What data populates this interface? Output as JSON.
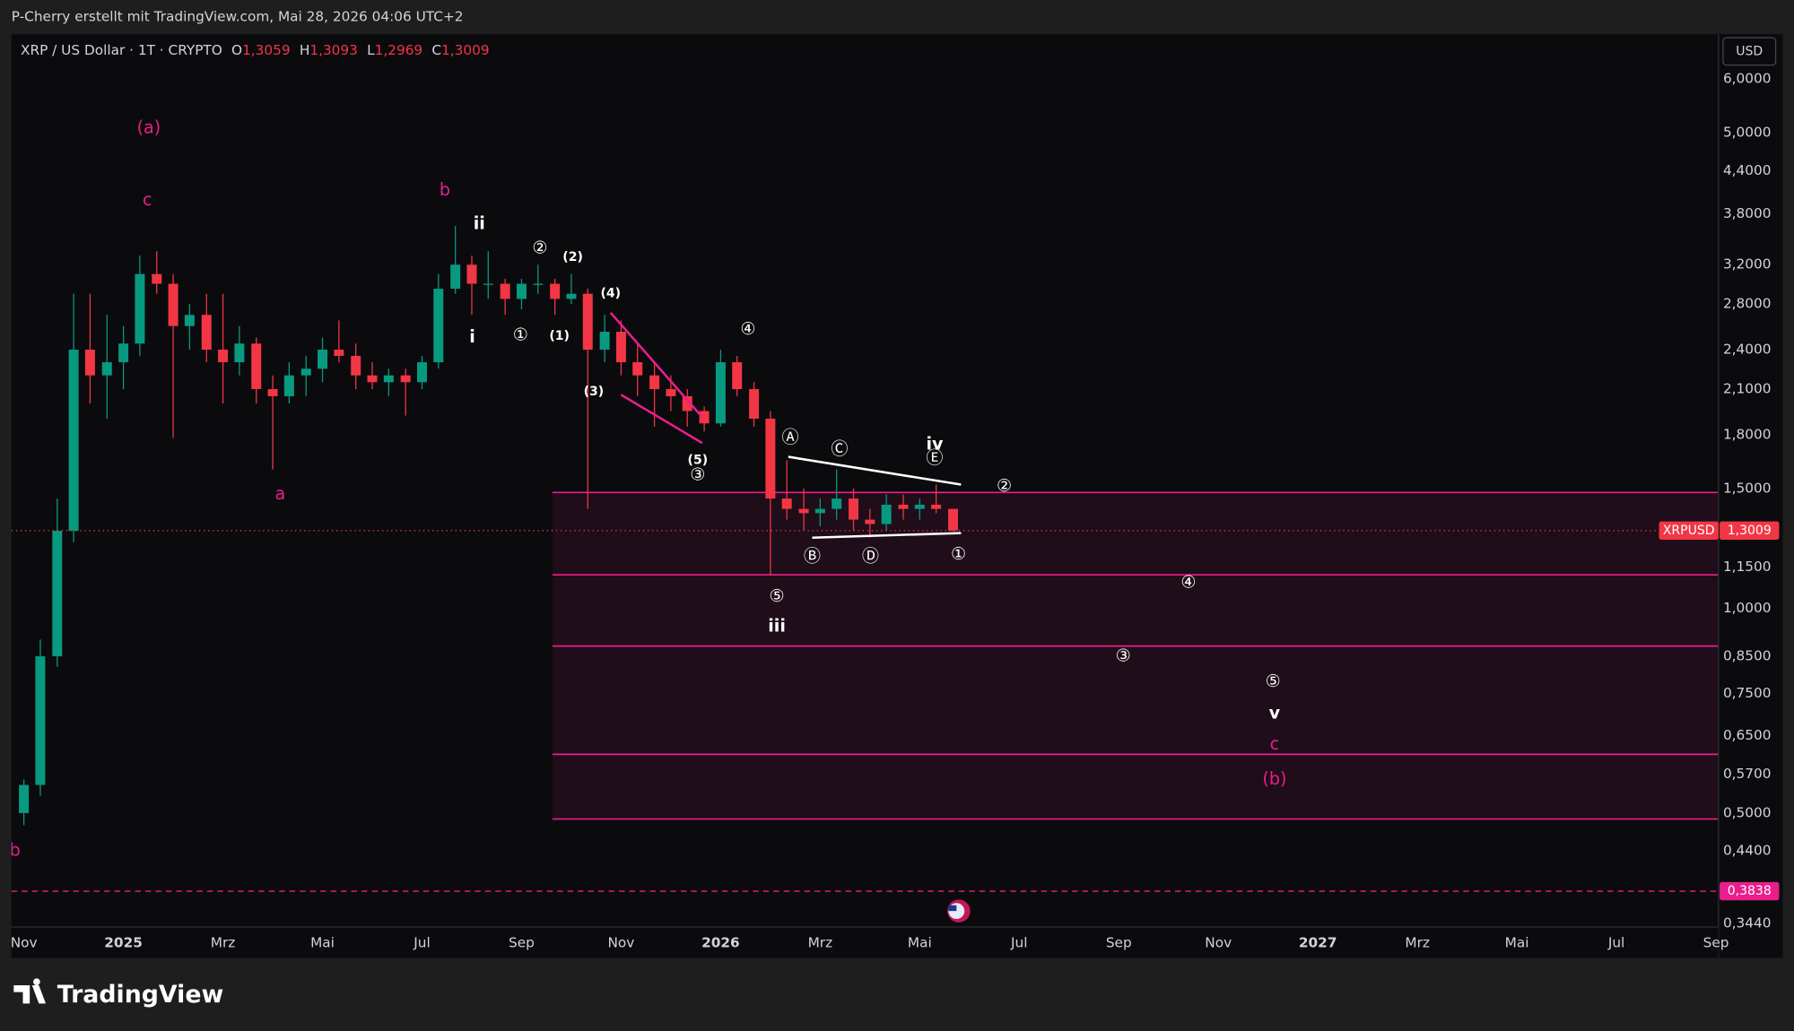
{
  "header": {
    "text": "P-Cherry erstellt mit TradingView.com, Mai 28, 2026 04:06 UTC+2"
  },
  "footer": {
    "brand": "TradingView"
  },
  "chart_data": {
    "type": "candlestick",
    "title": "XRP / US Dollar · 1T · CRYPTO",
    "ohlc_legend": [
      {
        "name": "O",
        "value": 1.3059,
        "label": "1,3059"
      },
      {
        "name": "H",
        "value": 1.3093,
        "label": "1,3093"
      },
      {
        "name": "L",
        "value": 1.2969,
        "label": "1,2969"
      },
      {
        "name": "C",
        "value": 1.3009,
        "label": "1,3009"
      }
    ],
    "currency": "USD",
    "up_color": "#089981",
    "down_color": "#f23645",
    "log_scale": true,
    "grid": false,
    "xlim": [
      -0.25,
      34.05
    ],
    "ylim": [
      0.34,
      6.98
    ],
    "xticks": [
      {
        "value": 0,
        "label": "Nov"
      },
      {
        "value": 2,
        "label": "2025"
      },
      {
        "value": 4,
        "label": "Mrz"
      },
      {
        "value": 6,
        "label": "Mai"
      },
      {
        "value": 8,
        "label": "Jul"
      },
      {
        "value": 10,
        "label": "Sep"
      },
      {
        "value": 12,
        "label": "Nov"
      },
      {
        "value": 14,
        "label": "2026"
      },
      {
        "value": 16,
        "label": "Mrz"
      },
      {
        "value": 18,
        "label": "Mai"
      },
      {
        "value": 20,
        "label": "Jul"
      },
      {
        "value": 22,
        "label": "Sep"
      },
      {
        "value": 24,
        "label": "Nov"
      },
      {
        "value": 26,
        "label": "2027"
      },
      {
        "value": 28,
        "label": "Mrz"
      },
      {
        "value": 30,
        "label": "Mai"
      },
      {
        "value": 32,
        "label": "Jul"
      },
      {
        "value": 34,
        "label": "Sep"
      }
    ],
    "yticks": [
      {
        "value": 6,
        "label": "6,0000"
      },
      {
        "value": 5,
        "label": "5,0000"
      },
      {
        "value": 4.4,
        "label": "4,4000"
      },
      {
        "value": 3.8,
        "label": "3,8000"
      },
      {
        "value": 3.2,
        "label": "3,2000"
      },
      {
        "value": 2.8,
        "label": "2,8000"
      },
      {
        "value": 2.4,
        "label": "2,4000"
      },
      {
        "value": 2.1,
        "label": "2,1000"
      },
      {
        "value": 1.8,
        "label": "1,8000"
      },
      {
        "value": 1.5,
        "label": "1,5000"
      },
      {
        "value": 1.15,
        "label": "1,1500"
      },
      {
        "value": 1,
        "label": "1,0000"
      },
      {
        "value": 0.85,
        "label": "0,8500"
      },
      {
        "value": 0.75,
        "label": "0,7500"
      },
      {
        "value": 0.65,
        "label": "0,6500"
      },
      {
        "value": 0.57,
        "label": "0,5700"
      },
      {
        "value": 0.5,
        "label": "0,5000"
      },
      {
        "value": 0.44,
        "label": "0,4400"
      },
      {
        "value": 0.344,
        "label": "0,3440"
      }
    ],
    "x": [
      0,
      0.33,
      0.67,
      1,
      1.33,
      1.67,
      2,
      2.33,
      2.67,
      3,
      3.33,
      3.67,
      4,
      4.33,
      4.67,
      5,
      5.33,
      5.67,
      6,
      6.33,
      6.67,
      7,
      7.33,
      7.67,
      8,
      8.33,
      8.67,
      9,
      9.33,
      9.67,
      10,
      10.33,
      10.67,
      11,
      11.33,
      11.67,
      12,
      12.33,
      12.67,
      13,
      13.33,
      13.67,
      14,
      14.33,
      14.67,
      15,
      15.33,
      15.67,
      16,
      16.33,
      16.67,
      17,
      17.33,
      17.67,
      18,
      18.33,
      18.67
    ],
    "open": [
      0.5,
      0.55,
      0.85,
      1.3,
      2.4,
      2.2,
      2.3,
      2.45,
      3.1,
      3.0,
      2.6,
      2.7,
      2.4,
      2.3,
      2.45,
      2.1,
      2.05,
      2.2,
      2.25,
      2.4,
      2.35,
      2.2,
      2.15,
      2.2,
      2.15,
      2.3,
      2.95,
      3.2,
      3.0,
      3.0,
      2.85,
      3.0,
      3.0,
      2.85,
      2.9,
      2.4,
      2.55,
      2.3,
      2.2,
      2.1,
      2.05,
      1.95,
      1.87,
      2.3,
      2.1,
      1.9,
      1.45,
      1.4,
      1.38,
      1.4,
      1.45,
      1.35,
      1.33,
      1.42,
      1.4,
      1.42,
      1.4
    ],
    "high": [
      0.56,
      0.9,
      1.45,
      2.9,
      2.9,
      2.7,
      2.6,
      3.3,
      3.35,
      3.1,
      2.8,
      2.9,
      2.9,
      2.6,
      2.5,
      2.2,
      2.3,
      2.35,
      2.5,
      2.65,
      2.45,
      2.3,
      2.25,
      2.25,
      2.35,
      3.1,
      3.65,
      3.3,
      3.35,
      3.05,
      3.05,
      3.2,
      3.05,
      3.1,
      2.95,
      2.7,
      2.65,
      2.45,
      2.3,
      2.2,
      2.1,
      1.98,
      2.4,
      2.35,
      2.15,
      1.95,
      1.65,
      1.5,
      1.45,
      1.6,
      1.5,
      1.4,
      1.47,
      1.47,
      1.45,
      1.52,
      1.4
    ],
    "low": [
      0.48,
      0.53,
      0.82,
      1.25,
      2.0,
      1.9,
      2.1,
      2.35,
      2.9,
      1.78,
      2.4,
      2.3,
      2.0,
      2.2,
      2.0,
      1.6,
      2.0,
      2.05,
      2.15,
      2.3,
      2.1,
      2.1,
      2.05,
      1.92,
      2.1,
      2.25,
      2.9,
      2.7,
      2.85,
      2.7,
      2.75,
      2.9,
      2.7,
      2.8,
      1.4,
      2.3,
      2.2,
      2.05,
      1.85,
      1.95,
      1.85,
      1.82,
      1.85,
      2.05,
      1.85,
      1.12,
      1.35,
      1.3,
      1.32,
      1.35,
      1.3,
      1.27,
      1.3,
      1.35,
      1.35,
      1.38,
      1.2969
    ],
    "close": [
      0.55,
      0.85,
      1.3,
      2.4,
      2.2,
      2.3,
      2.45,
      3.1,
      3.0,
      2.6,
      2.7,
      2.4,
      2.3,
      2.45,
      2.1,
      2.05,
      2.2,
      2.25,
      2.4,
      2.35,
      2.2,
      2.15,
      2.2,
      2.15,
      2.3,
      2.95,
      3.2,
      3.0,
      3.0,
      2.85,
      3.0,
      3.0,
      2.85,
      2.9,
      2.4,
      2.55,
      2.3,
      2.2,
      2.1,
      2.05,
      1.95,
      1.87,
      2.3,
      2.1,
      1.9,
      1.45,
      1.4,
      1.38,
      1.4,
      1.45,
      1.35,
      1.33,
      1.42,
      1.4,
      1.42,
      1.4,
      1.3009
    ],
    "zones": {
      "x_start": 10.62,
      "levels": [
        1.48,
        1.12,
        0.88,
        0.61,
        0.49
      ],
      "color": "#e91e8c"
    },
    "trendlines": [
      {
        "color": "#ffffff",
        "x": [
          15.36,
          18.83
        ],
        "y": [
          1.67,
          1.52
        ]
      },
      {
        "color": "#ffffff",
        "x": [
          15.84,
          18.83
        ],
        "y": [
          1.27,
          1.29
        ]
      },
      {
        "color": "#e91e8c",
        "x": [
          11.79,
          13.63
        ],
        "y": [
          2.72,
          1.91
        ]
      },
      {
        "color": "#e91e8c",
        "x": [
          12.0,
          13.63
        ],
        "y": [
          2.06,
          1.75
        ]
      }
    ],
    "price_lines": [
      {
        "name": "XRPUSD",
        "value": 1.3009,
        "label": "1,3009",
        "color": "#f23645",
        "style": "dotted"
      },
      {
        "value": 0.3838,
        "label": "0,3838",
        "color": "#e91e8c",
        "style": "dashed"
      }
    ],
    "annotations": [
      {
        "text": "(a)",
        "x": 2.51,
        "y": 5.08,
        "color": "#e91e8c"
      },
      {
        "text": "c",
        "x": 2.48,
        "y": 3.98,
        "color": "#e91e8c"
      },
      {
        "text": "a",
        "x": 5.15,
        "y": 1.47,
        "color": "#e91e8c"
      },
      {
        "text": "b",
        "x": 8.46,
        "y": 4.11,
        "color": "#e91e8c"
      },
      {
        "text": "ii",
        "x": 9.15,
        "y": 3.67,
        "color": "#ffffff"
      },
      {
        "text": "i",
        "x": 9.01,
        "y": 2.5,
        "color": "#ffffff"
      },
      {
        "text": "②",
        "x": 10.37,
        "y": 3.38,
        "color": "#ffffff"
      },
      {
        "text": "(2)",
        "x": 11.03,
        "y": 3.28,
        "color": "#ffffff"
      },
      {
        "text": "①",
        "x": 9.98,
        "y": 2.52,
        "color": "#ffffff"
      },
      {
        "text": "(1)",
        "x": 10.76,
        "y": 2.51,
        "color": "#ffffff"
      },
      {
        "text": "(4)",
        "x": 11.79,
        "y": 2.9,
        "color": "#ffffff"
      },
      {
        "text": "(3)",
        "x": 11.45,
        "y": 2.08,
        "color": "#ffffff"
      },
      {
        "text": "④",
        "x": 14.55,
        "y": 2.57,
        "color": "#ffffff"
      },
      {
        "text": "(5)",
        "x": 13.54,
        "y": 1.65,
        "color": "#ffffff"
      },
      {
        "text": "③",
        "x": 13.54,
        "y": 1.57,
        "color": "#ffffff"
      },
      {
        "text": "Ⓐ",
        "x": 15.4,
        "y": 1.78,
        "color": "#ffffff"
      },
      {
        "text": "Ⓒ",
        "x": 16.39,
        "y": 1.71,
        "color": "#ffffff"
      },
      {
        "text": "iv",
        "x": 18.3,
        "y": 1.74,
        "color": "#ffffff"
      },
      {
        "text": "Ⓔ",
        "x": 18.3,
        "y": 1.66,
        "color": "#ffffff"
      },
      {
        "text": "②",
        "x": 19.7,
        "y": 1.51,
        "color": "#ffffff"
      },
      {
        "text": "Ⓑ",
        "x": 15.84,
        "y": 1.19,
        "color": "#ffffff"
      },
      {
        "text": "Ⓓ",
        "x": 17.01,
        "y": 1.19,
        "color": "#ffffff"
      },
      {
        "text": "①",
        "x": 18.78,
        "y": 1.2,
        "color": "#ffffff"
      },
      {
        "text": "⑤",
        "x": 15.13,
        "y": 1.04,
        "color": "#ffffff"
      },
      {
        "text": "iii",
        "x": 15.13,
        "y": 0.94,
        "color": "#ffffff"
      },
      {
        "text": "④",
        "x": 23.4,
        "y": 1.09,
        "color": "#ffffff"
      },
      {
        "text": "③",
        "x": 22.09,
        "y": 0.85,
        "color": "#ffffff"
      },
      {
        "text": "⑤",
        "x": 25.1,
        "y": 0.78,
        "color": "#ffffff"
      },
      {
        "text": "v",
        "x": 25.13,
        "y": 0.7,
        "color": "#ffffff"
      },
      {
        "text": "c",
        "x": 25.13,
        "y": 0.63,
        "color": "#e91e8c"
      },
      {
        "text": "(b)",
        "x": 25.13,
        "y": 0.56,
        "color": "#e91e8c"
      },
      {
        "text": "b",
        "x": -0.18,
        "y": 0.44,
        "color": "#e91e8c"
      }
    ]
  }
}
